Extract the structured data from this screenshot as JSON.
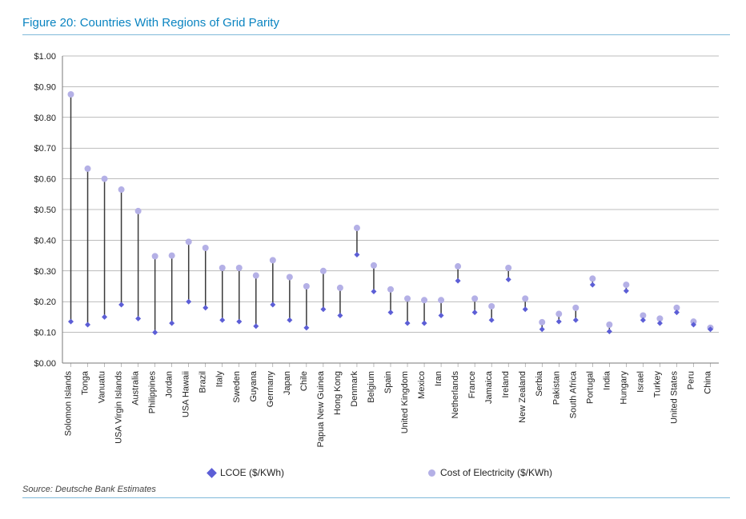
{
  "title": "Figure 20: Countries With Regions of Grid Parity",
  "source": "Source: Deutsche Bank Estimates",
  "chart": {
    "type": "hi-lo-scatter",
    "ylabel_fontsize": 11,
    "xlabel_fontsize": 11,
    "ylim": [
      0,
      1.0
    ],
    "ytick_step": 0.1,
    "ytick_format": "$0.00",
    "grid_color": "#7a7a7a",
    "axis_color": "#7a7a7a",
    "background_color": "#ffffff",
    "series": [
      {
        "name": "LCOE ($/KWh)",
        "marker": "diamond",
        "color": "#5c5ed6",
        "size": 7
      },
      {
        "name": "Cost of Electricity  ($/KWh)",
        "marker": "circle",
        "color": "#b4b0e6",
        "size": 8
      }
    ],
    "connector_color": "#3a3a3a",
    "connector_width": 1.5,
    "categories": [
      "Solomon Islands",
      "Tonga",
      "Vanuatu",
      "USA Virgin Islands",
      "Australia",
      "Philippines",
      "Jordan",
      "USA Hawaii",
      "Brazil",
      "Italy",
      "Sweden",
      "Guyana",
      "Germany",
      "Japan",
      "Chile",
      "Papua New Guinea",
      "Hong Kong",
      "Denmark",
      "Belgium",
      "Spain",
      "United Kingdom",
      "Mexico",
      "Iran",
      "Netherlands",
      "France",
      "Jamaica",
      "Ireland",
      "New Zealand",
      "Serbia",
      "Pakistan",
      "South Africa",
      "Portugal",
      "India",
      "Hungary",
      "Israel",
      "Turkey",
      "United States",
      "Peru",
      "China"
    ],
    "lcoe": [
      0.135,
      0.125,
      0.15,
      0.19,
      0.145,
      0.1,
      0.13,
      0.2,
      0.18,
      0.14,
      0.135,
      0.12,
      0.19,
      0.14,
      0.115,
      0.175,
      0.155,
      0.353,
      0.233,
      0.165,
      0.13,
      0.13,
      0.155,
      0.268,
      0.165,
      0.14,
      0.272,
      0.175,
      0.11,
      0.135,
      0.14,
      0.255,
      0.103,
      0.235,
      0.14,
      0.13,
      0.165,
      0.125,
      0.11
    ],
    "cost": [
      0.875,
      0.633,
      0.6,
      0.565,
      0.495,
      0.348,
      0.35,
      0.395,
      0.375,
      0.31,
      0.31,
      0.285,
      0.335,
      0.28,
      0.25,
      0.3,
      0.245,
      0.44,
      0.318,
      0.24,
      0.21,
      0.205,
      0.205,
      0.315,
      0.21,
      0.185,
      0.31,
      0.21,
      0.133,
      0.16,
      0.18,
      0.275,
      0.125,
      0.255,
      0.155,
      0.145,
      0.18,
      0.135,
      0.115
    ]
  }
}
